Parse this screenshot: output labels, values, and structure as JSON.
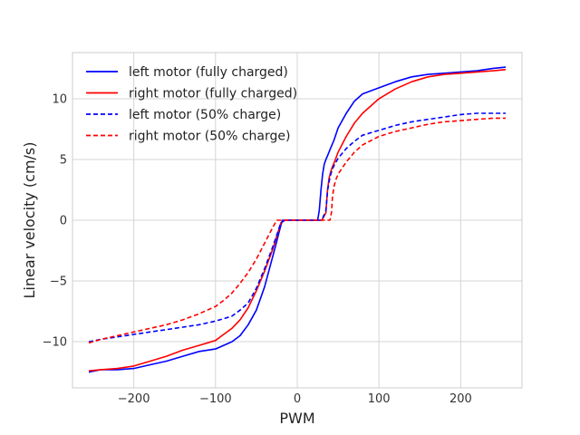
{
  "chart_data": {
    "type": "line",
    "title": "",
    "xlabel": "PWM",
    "ylabel": "Linear velocity (cm/s)",
    "xlim": [
      -275,
      275
    ],
    "ylim": [
      -13.8,
      13.8
    ],
    "xticks": [
      -200,
      -100,
      0,
      100,
      200
    ],
    "xtick_labels": [
      "−200",
      "−100",
      "0",
      "100",
      "200"
    ],
    "yticks": [
      -10,
      -5,
      0,
      5,
      10
    ],
    "ytick_labels": [
      "−10",
      "−5",
      "0",
      "5",
      "10"
    ],
    "grid": true,
    "legend_position": "top-left",
    "series": [
      {
        "name": "left motor (fully charged)",
        "color": "#0000ff",
        "style": "solid",
        "x": [
          -255,
          -240,
          -220,
          -200,
          -180,
          -160,
          -140,
          -120,
          -100,
          -90,
          -80,
          -70,
          -60,
          -50,
          -40,
          -30,
          -25,
          -20,
          -18,
          -15,
          0,
          15,
          25,
          27,
          29,
          31,
          33,
          35,
          37,
          40,
          45,
          50,
          60,
          70,
          80,
          100,
          120,
          140,
          160,
          180,
          200,
          220,
          240,
          255
        ],
        "y": [
          -12.5,
          -12.3,
          -12.3,
          -12.2,
          -11.9,
          -11.6,
          -11.2,
          -10.8,
          -10.6,
          -10.3,
          -10.0,
          -9.5,
          -8.6,
          -7.4,
          -5.5,
          -3.0,
          -1.7,
          -0.4,
          0,
          0,
          0,
          0,
          0,
          0.8,
          2.5,
          3.8,
          4.6,
          5.0,
          5.3,
          5.8,
          6.6,
          7.6,
          8.8,
          9.8,
          10.4,
          10.9,
          11.4,
          11.8,
          12.0,
          12.1,
          12.2,
          12.3,
          12.5,
          12.6
        ]
      },
      {
        "name": "right motor (fully charged)",
        "color": "#ff0000",
        "style": "solid",
        "x": [
          -255,
          -240,
          -220,
          -200,
          -180,
          -160,
          -140,
          -120,
          -100,
          -90,
          -80,
          -70,
          -60,
          -50,
          -40,
          -30,
          -25,
          -20,
          -15,
          0,
          15,
          30,
          35,
          37,
          39,
          41,
          43,
          45,
          50,
          60,
          70,
          80,
          100,
          120,
          140,
          160,
          180,
          200,
          220,
          240,
          255
        ],
        "y": [
          -12.4,
          -12.3,
          -12.2,
          -12.0,
          -11.6,
          -11.2,
          -10.7,
          -10.3,
          -9.9,
          -9.4,
          -8.9,
          -8.2,
          -7.2,
          -5.8,
          -4.2,
          -2.4,
          -1.3,
          -0.2,
          0,
          0,
          0,
          0,
          0.6,
          2.5,
          3.5,
          4.0,
          4.4,
          4.7,
          5.6,
          6.9,
          8.0,
          8.8,
          10.0,
          10.8,
          11.4,
          11.8,
          12.0,
          12.1,
          12.2,
          12.3,
          12.4
        ]
      },
      {
        "name": "left motor (50% charge)",
        "color": "#0000ff",
        "style": "dashed",
        "x": [
          -255,
          -240,
          -220,
          -200,
          -180,
          -160,
          -140,
          -120,
          -100,
          -80,
          -70,
          -60,
          -50,
          -40,
          -30,
          -25,
          -20,
          -15,
          0,
          15,
          30,
          35,
          37,
          39,
          41,
          43,
          45,
          50,
          60,
          70,
          80,
          100,
          120,
          140,
          160,
          180,
          200,
          220,
          240,
          255
        ],
        "y": [
          -10.0,
          -9.8,
          -9.6,
          -9.4,
          -9.2,
          -9.0,
          -8.8,
          -8.6,
          -8.3,
          -7.9,
          -7.4,
          -6.8,
          -5.6,
          -4.0,
          -2.2,
          -1.2,
          -0.2,
          0,
          0,
          0,
          0,
          0.8,
          2.4,
          3.2,
          3.8,
          4.2,
          4.5,
          5.1,
          5.9,
          6.5,
          7.0,
          7.4,
          7.8,
          8.1,
          8.3,
          8.5,
          8.7,
          8.8,
          8.8,
          8.8
        ]
      },
      {
        "name": "right motor (50% charge)",
        "color": "#ff0000",
        "style": "dashed",
        "x": [
          -255,
          -240,
          -220,
          -200,
          -180,
          -160,
          -140,
          -120,
          -100,
          -90,
          -80,
          -70,
          -60,
          -50,
          -40,
          -30,
          -25,
          -20,
          0,
          15,
          30,
          40,
          42,
          43,
          45,
          47,
          50,
          60,
          70,
          80,
          100,
          120,
          140,
          160,
          180,
          200,
          220,
          240,
          255
        ],
        "y": [
          -10.1,
          -9.8,
          -9.5,
          -9.2,
          -8.9,
          -8.6,
          -8.2,
          -7.7,
          -7.1,
          -6.6,
          -6.0,
          -5.2,
          -4.3,
          -3.2,
          -1.9,
          -0.6,
          0,
          0,
          0,
          0,
          0,
          0,
          0.7,
          1.9,
          2.8,
          3.3,
          3.8,
          4.8,
          5.6,
          6.2,
          6.9,
          7.3,
          7.6,
          7.9,
          8.1,
          8.2,
          8.3,
          8.4,
          8.4
        ]
      }
    ]
  }
}
